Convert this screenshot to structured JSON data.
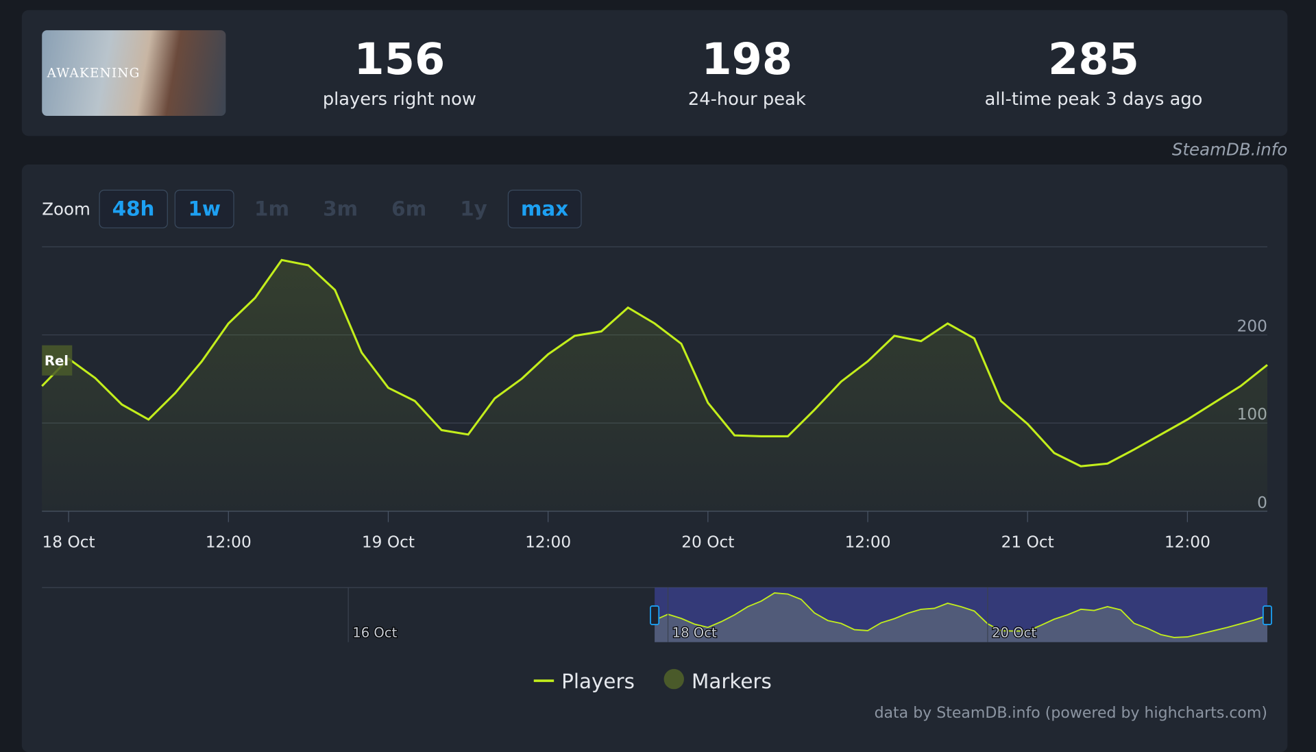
{
  "header": {
    "thumbnail_text": "AWAKENING",
    "stats": [
      {
        "value": 156,
        "label": "players right now"
      },
      {
        "value": 198,
        "label": "24-hour peak"
      },
      {
        "value": 285,
        "label": "all-time peak 3 days ago"
      }
    ]
  },
  "credit_top": "SteamDB.info",
  "zoom": {
    "label": "Zoom",
    "buttons": [
      {
        "text": "48h",
        "active": true
      },
      {
        "text": "1w",
        "active": true
      },
      {
        "text": "1m",
        "active": false
      },
      {
        "text": "3m",
        "active": false
      },
      {
        "text": "6m",
        "active": false
      },
      {
        "text": "1y",
        "active": false
      },
      {
        "text": "max",
        "active": true
      }
    ]
  },
  "chart_data": {
    "type": "line",
    "series": [
      {
        "name": "Players",
        "color": "#c3ee1c",
        "values": [
          142,
          173,
          151,
          121,
          104,
          134,
          170,
          213,
          242,
          285,
          279,
          251,
          180,
          140,
          125,
          92,
          87,
          128,
          150,
          178,
          199,
          204,
          231,
          213,
          190,
          123,
          86,
          85,
          85,
          115,
          147,
          170,
          199,
          193,
          213,
          196,
          125,
          99,
          66,
          51,
          54,
          70,
          87,
          104,
          123,
          142,
          166
        ]
      }
    ],
    "markers": {
      "name": "Markers",
      "color": "#4a5a2a",
      "annotation": "Rel"
    },
    "xlim": [
      0,
      46
    ],
    "xticks": [
      {
        "value": 1,
        "label": "18 Oct"
      },
      {
        "value": 7,
        "label": "12:00"
      },
      {
        "value": 13,
        "label": "19 Oct"
      },
      {
        "value": 19,
        "label": "12:00"
      },
      {
        "value": 25,
        "label": "20 Oct"
      },
      {
        "value": 31,
        "label": "12:00"
      },
      {
        "value": 37,
        "label": "21 Oct"
      },
      {
        "value": 43,
        "label": "12:00"
      }
    ],
    "ylim": [
      0,
      300
    ],
    "yticks": [
      0,
      100,
      200
    ],
    "grid": true,
    "navigator": {
      "xlim": [
        -46,
        46
      ],
      "xticks": [
        {
          "value": -23,
          "label": "16 Oct"
        },
        {
          "value": 1,
          "label": "18 Oct"
        },
        {
          "value": 25,
          "label": "20 Oct"
        }
      ]
    },
    "credits": "data by SteamDB.info (powered by highcharts.com)"
  }
}
